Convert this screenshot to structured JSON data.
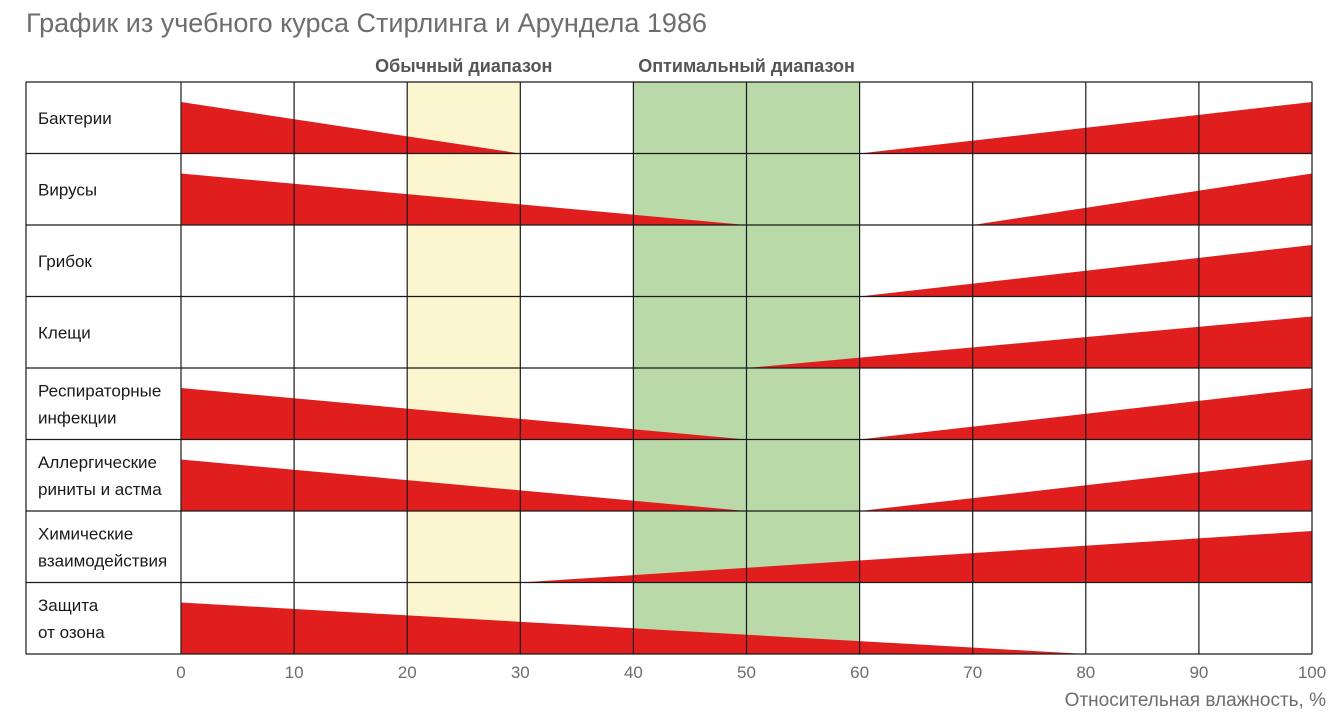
{
  "title": "График из учебного курса Стирлинга и Арундела 1986",
  "chart_data": {
    "type": "area",
    "title": "График из учебного курса Стирлинга и Арундела 1986",
    "xlabel": "Относительная влажность, %",
    "xlim": [
      0,
      100
    ],
    "x_ticks": [
      "0",
      "10",
      "20",
      "30",
      "40",
      "50",
      "60",
      "70",
      "80",
      "90",
      "100"
    ],
    "grid": true,
    "bands": [
      {
        "label": "Обычный диапазон",
        "x_start": 20,
        "x_end": 30,
        "color": "#fbf6cf"
      },
      {
        "label": "Оптимальный диапазон",
        "x_start": 40,
        "x_end": 60,
        "color": "#b9d9a8"
      }
    ],
    "rows": [
      {
        "label": [
          "Бактерии"
        ],
        "low_wedge": [
          0,
          30
        ],
        "high_wedge": [
          60,
          100
        ]
      },
      {
        "label": [
          "Вирусы"
        ],
        "low_wedge": [
          0,
          50
        ],
        "high_wedge": [
          70,
          100
        ]
      },
      {
        "label": [
          "Грибок"
        ],
        "low_wedge": null,
        "high_wedge": [
          60,
          100
        ]
      },
      {
        "label": [
          "Клещи"
        ],
        "low_wedge": null,
        "high_wedge": [
          50,
          100
        ]
      },
      {
        "label": [
          "Респираторные",
          "инфекции"
        ],
        "low_wedge": [
          0,
          50
        ],
        "high_wedge": [
          60,
          100
        ]
      },
      {
        "label": [
          "Аллергические",
          "риниты и астма"
        ],
        "low_wedge": [
          0,
          50
        ],
        "high_wedge": [
          60,
          100
        ]
      },
      {
        "label": [
          "Химические",
          "взаимодействия"
        ],
        "low_wedge": null,
        "high_wedge": [
          30,
          100
        ]
      },
      {
        "label": [
          "Защита",
          "от озона"
        ],
        "low_wedge": [
          0,
          80
        ],
        "high_wedge": null
      }
    ],
    "wedge_color": "#e01e1e"
  }
}
